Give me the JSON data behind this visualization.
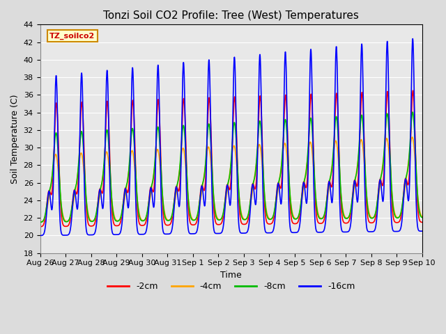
{
  "title": "Tonzi Soil CO2 Profile: Tree (West) Temperatures",
  "xlabel": "Time",
  "ylabel": "Soil Temperature (C)",
  "ylim": [
    18,
    44
  ],
  "yticks": [
    18,
    20,
    22,
    24,
    26,
    28,
    30,
    32,
    34,
    36,
    38,
    40,
    42,
    44
  ],
  "legend_label": "TZ_soilco2",
  "series_labels": [
    "-2cm",
    "-4cm",
    "-8cm",
    "-16cm"
  ],
  "series_colors": [
    "#ff0000",
    "#ffa500",
    "#00bb00",
    "#0000ff"
  ],
  "background_color": "#dcdcdc",
  "axes_facecolor": "#e8e8e8",
  "grid_color": "#ffffff",
  "xtick_labels": [
    "Aug 26",
    "Aug 27",
    "Aug 28",
    "Aug 29",
    "Aug 30",
    "Aug 31",
    "Sep 1",
    "Sep 2",
    "Sep 3",
    "Sep 4",
    "Sep 5",
    "Sep 6",
    "Sep 7",
    "Sep 8",
    "Sep 9",
    "Sep 10"
  ],
  "title_fontsize": 11,
  "axis_label_fontsize": 9,
  "tick_fontsize": 8,
  "n_days": 15,
  "pts_per_day": 144,
  "peak_time_blue": 0.62,
  "peak_time_red": 0.63,
  "peak_time_green": 0.61,
  "peak_time_orange": 0.6
}
